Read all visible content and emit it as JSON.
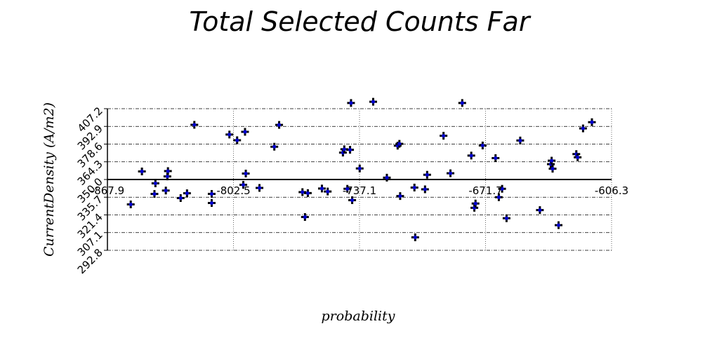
{
  "chart_data": {
    "type": "scatter",
    "title": "Total Selected Counts Far",
    "xlabel": "probability",
    "ylabel": "CurrentDensity (A/m2)",
    "xlim": [
      -867.9,
      -606.3
    ],
    "ylim": [
      292.8,
      407.2
    ],
    "x_ticks": [
      "-867.9",
      "-802.5",
      "-737.1",
      "-671.7",
      "-606.3"
    ],
    "y_ticks": [
      "292.8",
      "307.1",
      "321.4",
      "335.7",
      "350.0",
      "364.3",
      "378.6",
      "392.9",
      "407.2"
    ],
    "grid": true,
    "marker_color": "#0000cc",
    "points": [
      {
        "x": -855.8,
        "y": 329.9
      },
      {
        "x": -850.0,
        "y": 356.5
      },
      {
        "x": -843.5,
        "y": 338.3
      },
      {
        "x": -843.0,
        "y": 346.9
      },
      {
        "x": -837.6,
        "y": 341.1
      },
      {
        "x": -836.8,
        "y": 352.5
      },
      {
        "x": -836.5,
        "y": 356.8
      },
      {
        "x": -829.9,
        "y": 335.0
      },
      {
        "x": -826.6,
        "y": 338.9
      },
      {
        "x": -822.8,
        "y": 394.2
      },
      {
        "x": -813.8,
        "y": 331.0
      },
      {
        "x": -813.8,
        "y": 338.4
      },
      {
        "x": -804.6,
        "y": 386.3
      },
      {
        "x": -800.6,
        "y": 381.7
      },
      {
        "x": -797.4,
        "y": 345.7
      },
      {
        "x": -796.5,
        "y": 388.5
      },
      {
        "x": -796.1,
        "y": 354.8
      },
      {
        "x": -789.0,
        "y": 343.2
      },
      {
        "x": -781.3,
        "y": 376.5
      },
      {
        "x": -778.8,
        "y": 394.1
      },
      {
        "x": -766.7,
        "y": 339.8
      },
      {
        "x": -765.4,
        "y": 319.7
      },
      {
        "x": -763.9,
        "y": 339.0
      },
      {
        "x": -756.6,
        "y": 342.7
      },
      {
        "x": -753.6,
        "y": 340.3
      },
      {
        "x": -745.7,
        "y": 371.7
      },
      {
        "x": -745.0,
        "y": 374.4
      },
      {
        "x": -743.4,
        "y": 342.5
      },
      {
        "x": -742.0,
        "y": 374.0
      },
      {
        "x": -741.5,
        "y": 411.8
      },
      {
        "x": -740.9,
        "y": 333.3
      },
      {
        "x": -737.0,
        "y": 358.9
      },
      {
        "x": -730.0,
        "y": 412.8
      },
      {
        "x": -722.9,
        "y": 351.5
      },
      {
        "x": -717.3,
        "y": 377.3
      },
      {
        "x": -716.4,
        "y": 378.8
      },
      {
        "x": -716.0,
        "y": 336.6
      },
      {
        "x": -708.6,
        "y": 343.5
      },
      {
        "x": -708.2,
        "y": 303.3
      },
      {
        "x": -703.1,
        "y": 342.1
      },
      {
        "x": -702.0,
        "y": 353.8
      },
      {
        "x": -693.5,
        "y": 385.3
      },
      {
        "x": -689.9,
        "y": 355.0
      },
      {
        "x": -683.8,
        "y": 411.8
      },
      {
        "x": -679.1,
        "y": 369.3
      },
      {
        "x": -677.5,
        "y": 327.1
      },
      {
        "x": -676.9,
        "y": 330.6
      },
      {
        "x": -673.2,
        "y": 377.5
      },
      {
        "x": -666.5,
        "y": 367.3
      },
      {
        "x": -664.8,
        "y": 335.7
      },
      {
        "x": -663.1,
        "y": 342.5
      },
      {
        "x": -660.8,
        "y": 318.7
      },
      {
        "x": -653.7,
        "y": 381.5
      },
      {
        "x": -643.5,
        "y": 325.3
      },
      {
        "x": -637.8,
        "y": 362.4
      },
      {
        "x": -637.4,
        "y": 365.2
      },
      {
        "x": -636.9,
        "y": 358.7
      },
      {
        "x": -633.8,
        "y": 313.1
      },
      {
        "x": -624.6,
        "y": 370.5
      },
      {
        "x": -623.9,
        "y": 367.9
      },
      {
        "x": -621.1,
        "y": 391.3
      },
      {
        "x": -616.5,
        "y": 396.3
      }
    ]
  }
}
